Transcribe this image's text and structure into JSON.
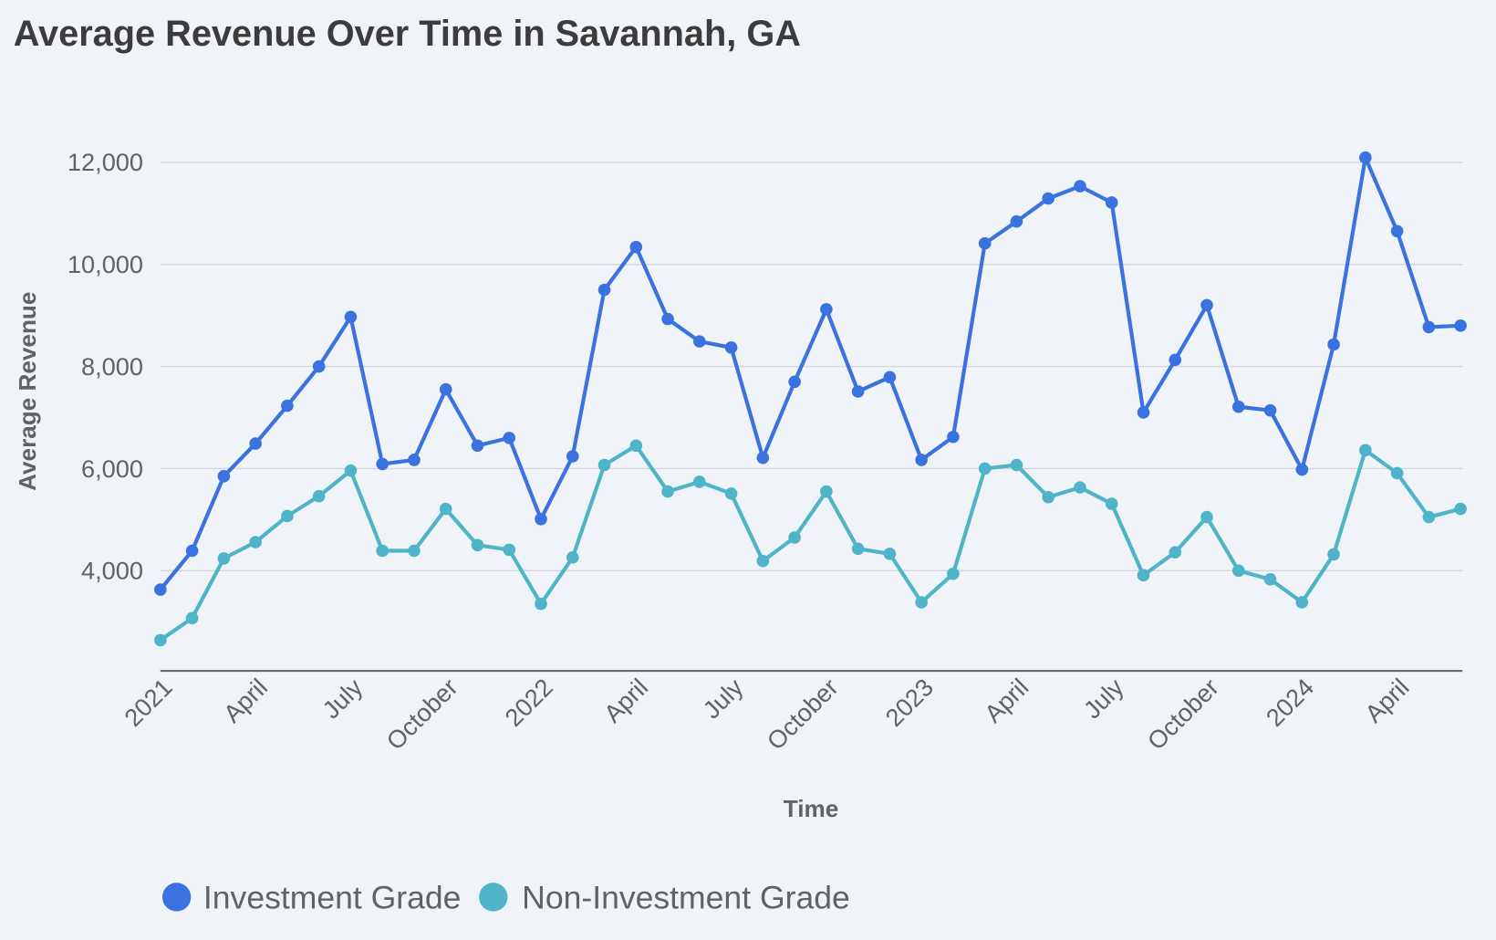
{
  "chart_data": {
    "type": "line",
    "title": "Average Revenue Over Time in Savannah, GA",
    "xlabel": "Time",
    "ylabel": "Average Revenue",
    "ylim": [
      2040,
      12000
    ],
    "yticks": [
      4000,
      6000,
      8000,
      10000,
      12000
    ],
    "ytick_labels": [
      "4,000",
      "6,000",
      "8,000",
      "10,000",
      "12,000"
    ],
    "x": [
      "2021-01",
      "2021-02",
      "2021-03",
      "2021-04",
      "2021-05",
      "2021-06",
      "2021-07",
      "2021-08",
      "2021-09",
      "2021-10",
      "2021-11",
      "2021-12",
      "2022-01",
      "2022-02",
      "2022-03",
      "2022-04",
      "2022-05",
      "2022-06",
      "2022-07",
      "2022-08",
      "2022-09",
      "2022-10",
      "2022-11",
      "2022-12",
      "2023-01",
      "2023-02",
      "2023-03",
      "2023-04",
      "2023-05",
      "2023-06",
      "2023-07",
      "2023-08",
      "2023-09",
      "2023-10",
      "2023-11",
      "2023-12",
      "2024-01",
      "2024-02",
      "2024-03",
      "2024-04",
      "2024-05",
      "2024-06"
    ],
    "xticks": [
      {
        "index": 0,
        "label": "2021"
      },
      {
        "index": 3,
        "label": "April"
      },
      {
        "index": 6,
        "label": "July"
      },
      {
        "index": 9,
        "label": "October"
      },
      {
        "index": 12,
        "label": "2022"
      },
      {
        "index": 15,
        "label": "April"
      },
      {
        "index": 18,
        "label": "July"
      },
      {
        "index": 21,
        "label": "October"
      },
      {
        "index": 24,
        "label": "2023"
      },
      {
        "index": 27,
        "label": "April"
      },
      {
        "index": 30,
        "label": "July"
      },
      {
        "index": 33,
        "label": "October"
      },
      {
        "index": 36,
        "label": "2024"
      },
      {
        "index": 39,
        "label": "April"
      }
    ],
    "grid": true,
    "legend_position": "bottom-left",
    "series": [
      {
        "name": "Investment Grade",
        "color": "#3a72e0",
        "values": [
          3630,
          4390,
          5850,
          6490,
          7230,
          8000,
          8970,
          6090,
          6170,
          7550,
          6450,
          6600,
          5010,
          6240,
          9500,
          10340,
          8930,
          8490,
          8370,
          6210,
          7700,
          9120,
          7510,
          7790,
          6170,
          6620,
          10410,
          10840,
          11290,
          11530,
          11210,
          7100,
          8130,
          9200,
          7210,
          7140,
          5980,
          8430,
          12090,
          10650,
          8770,
          8800
        ]
      },
      {
        "name": "Non-Investment Grade",
        "color": "#4fb4c8",
        "values": [
          2640,
          3070,
          4240,
          4560,
          5070,
          5460,
          5960,
          4390,
          4390,
          5210,
          4500,
          4410,
          3350,
          4260,
          6070,
          6450,
          5550,
          5740,
          5510,
          4190,
          4650,
          5550,
          4430,
          4330,
          3380,
          3940,
          6000,
          6070,
          5440,
          5630,
          5310,
          3910,
          4360,
          5050,
          4000,
          3830,
          3380,
          4320,
          6360,
          5910,
          5050,
          5210
        ]
      }
    ]
  }
}
